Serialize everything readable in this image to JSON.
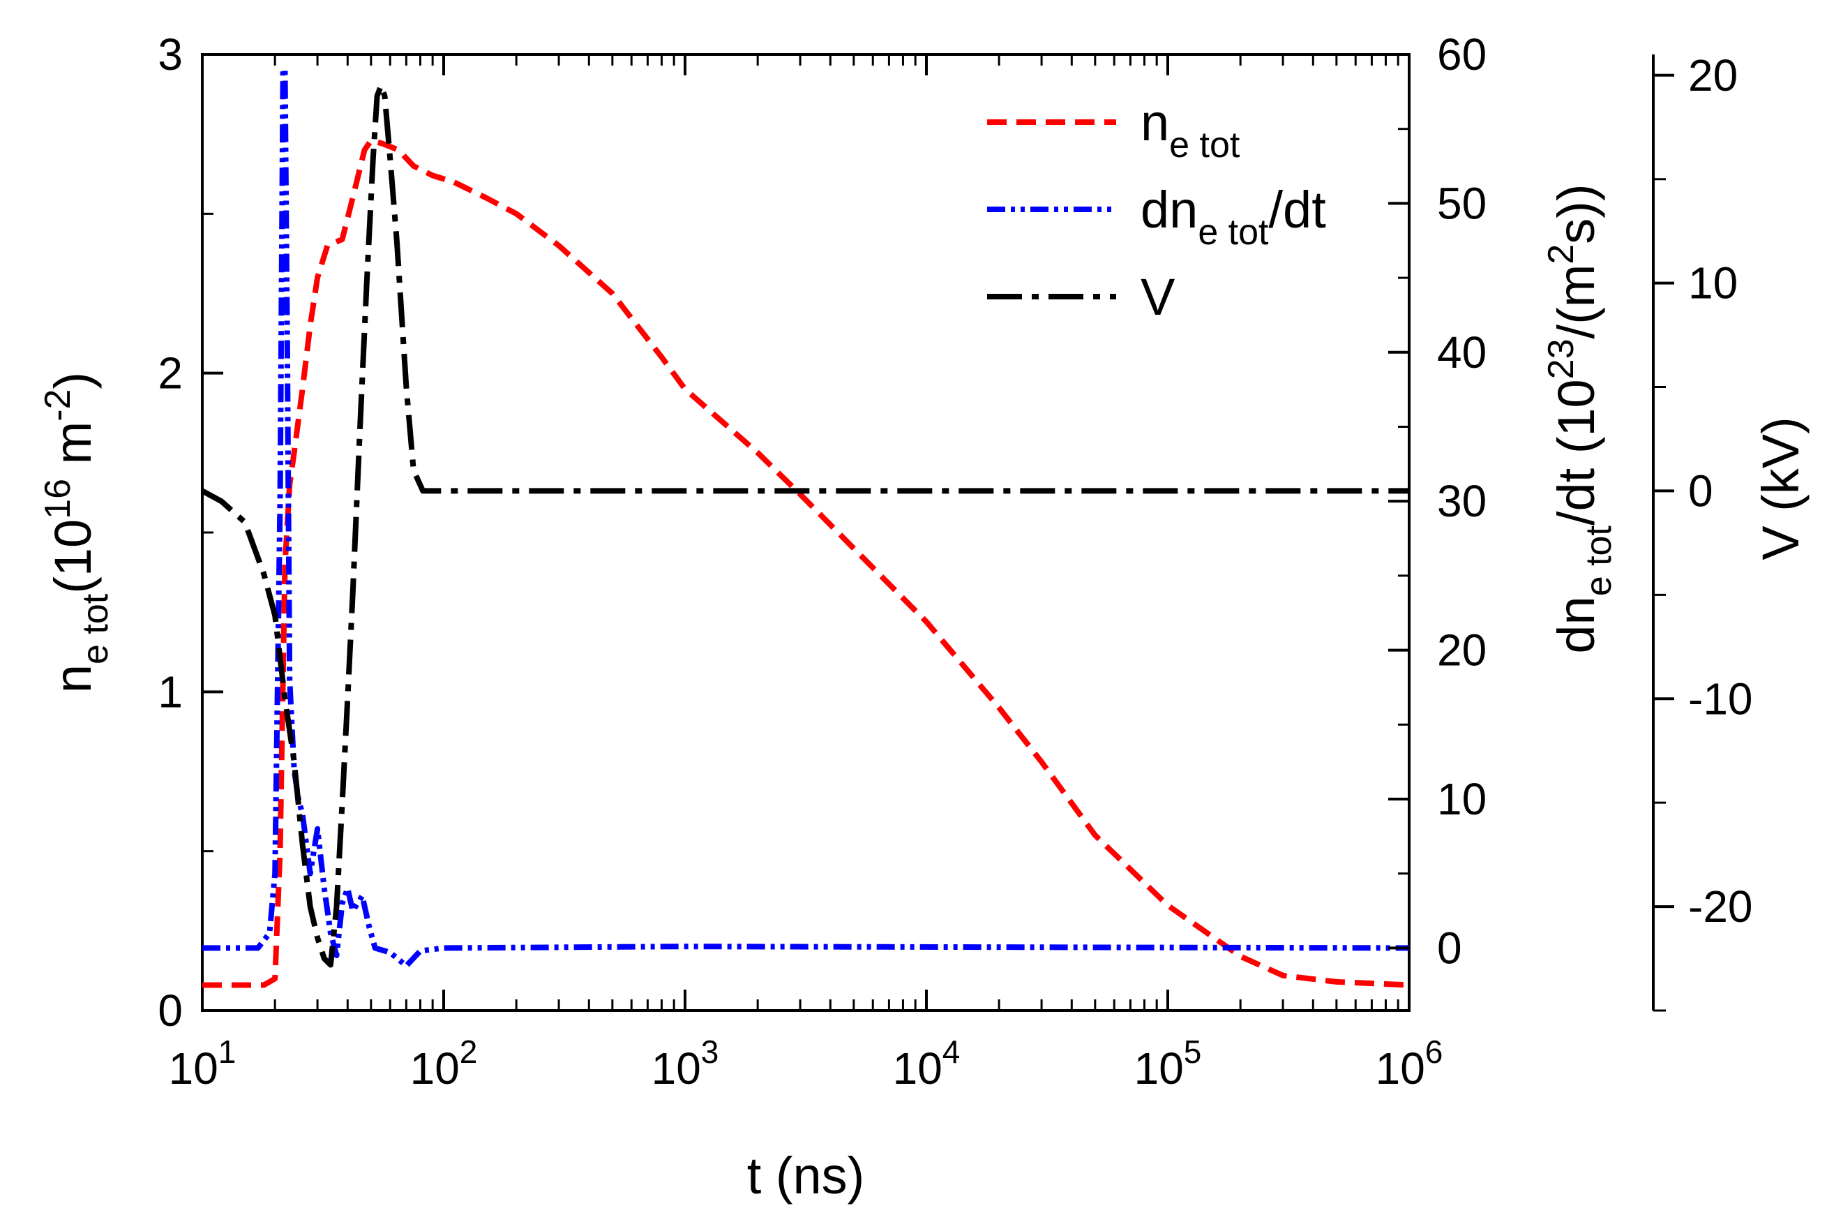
{
  "colors": {
    "ne_tot": "#ff0000",
    "dne_tot_dt": "#0000ff",
    "V": "#000000",
    "axis": "#000000"
  },
  "chart_data": {
    "type": "line",
    "x": {
      "label": "t (ns)",
      "scale": "log",
      "range": [
        10,
        1000000
      ],
      "ticks": [
        {
          "value": 10,
          "base": "10",
          "exp": "1"
        },
        {
          "value": 100,
          "base": "10",
          "exp": "2"
        },
        {
          "value": 1000,
          "base": "10",
          "exp": "3"
        },
        {
          "value": 10000,
          "base": "10",
          "exp": "4"
        },
        {
          "value": 100000,
          "base": "10",
          "exp": "5"
        },
        {
          "value": 1000000,
          "base": "10",
          "exp": "6"
        }
      ]
    },
    "y_left": {
      "label_parts": {
        "n": "n",
        "sub": "e tot",
        "open": "(10",
        "exp": "16",
        "unit": " m",
        "unit_exp": "-2",
        "close": ")"
      },
      "range": [
        0,
        3
      ],
      "ticks": [
        {
          "value": 0,
          "label": "0"
        },
        {
          "value": 1,
          "label": "1"
        },
        {
          "value": 2,
          "label": "2"
        },
        {
          "value": 3,
          "label": "3"
        }
      ]
    },
    "y_right1": {
      "label_parts": {
        "n": "dn",
        "sub": "e tot",
        "mid": "/dt (10",
        "exp": "23",
        "unit": "/(m",
        "unit_exp": "2",
        "close": "s))"
      },
      "range": [
        -4.2,
        60
      ],
      "ticks": [
        {
          "value": 0,
          "label": "0"
        },
        {
          "value": 10,
          "label": "10"
        },
        {
          "value": 20,
          "label": "20"
        },
        {
          "value": 30,
          "label": "30"
        },
        {
          "value": 40,
          "label": "40"
        },
        {
          "value": 50,
          "label": "50"
        },
        {
          "value": 60,
          "label": "60"
        }
      ]
    },
    "y_right2": {
      "label": "V (kV)",
      "range": [
        -25,
        21
      ],
      "ticks": [
        {
          "value": -20,
          "label": "-20"
        },
        {
          "value": -10,
          "label": "-10"
        },
        {
          "value": 0,
          "label": "0"
        },
        {
          "value": 10,
          "label": "10"
        },
        {
          "value": 20,
          "label": "20"
        }
      ]
    },
    "legend": {
      "position": "top-right",
      "entries": [
        {
          "key": "ne_tot",
          "name": "n",
          "sub": "e tot",
          "suffix": ""
        },
        {
          "key": "dne_tot_dt",
          "name": "dn",
          "sub": "e tot",
          "suffix": "/dt"
        },
        {
          "key": "V",
          "name": "V",
          "sub": "",
          "suffix": ""
        }
      ]
    },
    "series": [
      {
        "key": "ne_tot",
        "axis": "y_left",
        "style": "dashed",
        "points": [
          [
            10,
            0.08
          ],
          [
            18,
            0.08
          ],
          [
            20,
            0.1
          ],
          [
            21,
            0.5
          ],
          [
            22,
            1.4
          ],
          [
            23,
            1.65
          ],
          [
            24,
            1.75
          ],
          [
            26,
            1.95
          ],
          [
            28,
            2.15
          ],
          [
            30,
            2.3
          ],
          [
            33,
            2.4
          ],
          [
            38,
            2.42
          ],
          [
            42,
            2.55
          ],
          [
            47,
            2.7
          ],
          [
            50,
            2.73
          ],
          [
            56,
            2.72
          ],
          [
            65,
            2.7
          ],
          [
            75,
            2.65
          ],
          [
            90,
            2.62
          ],
          [
            110,
            2.6
          ],
          [
            150,
            2.55
          ],
          [
            200,
            2.5
          ],
          [
            300,
            2.4
          ],
          [
            500,
            2.25
          ],
          [
            800,
            2.05
          ],
          [
            1000,
            1.95
          ],
          [
            2000,
            1.75
          ],
          [
            3000,
            1.62
          ],
          [
            5000,
            1.45
          ],
          [
            10000,
            1.22
          ],
          [
            20000,
            0.95
          ],
          [
            30000,
            0.78
          ],
          [
            50000,
            0.55
          ],
          [
            100000,
            0.33
          ],
          [
            200000,
            0.17
          ],
          [
            300000,
            0.11
          ],
          [
            500000,
            0.09
          ],
          [
            1000000,
            0.08
          ]
        ]
      },
      {
        "key": "dne_tot_dt",
        "axis": "y_right1",
        "style": "dashdotdot",
        "points": [
          [
            10,
            0
          ],
          [
            17,
            0
          ],
          [
            19,
            1
          ],
          [
            20,
            5
          ],
          [
            21,
            30
          ],
          [
            21.6,
            59
          ],
          [
            22,
            59
          ],
          [
            22.5,
            40
          ],
          [
            23,
            18
          ],
          [
            24,
            12
          ],
          [
            25,
            10
          ],
          [
            26,
            9
          ],
          [
            28,
            5
          ],
          [
            30,
            8
          ],
          [
            32,
            4
          ],
          [
            34,
            1
          ],
          [
            36,
            -0.5
          ],
          [
            38,
            3
          ],
          [
            40,
            4
          ],
          [
            42,
            2.5
          ],
          [
            44,
            3
          ],
          [
            46,
            3.5
          ],
          [
            49,
            1.5
          ],
          [
            52,
            0
          ],
          [
            60,
            -0.3
          ],
          [
            70,
            -1.2
          ],
          [
            80,
            -0.2
          ],
          [
            100,
            0
          ],
          [
            1000,
            0.1
          ],
          [
            1000000,
            0
          ]
        ]
      },
      {
        "key": "V",
        "axis": "y_right2",
        "style": "dashdot",
        "points": [
          [
            10,
            0
          ],
          [
            12,
            -0.5
          ],
          [
            15,
            -1.5
          ],
          [
            18,
            -4
          ],
          [
            20,
            -6
          ],
          [
            22,
            -10
          ],
          [
            24,
            -13
          ],
          [
            26,
            -17
          ],
          [
            28,
            -20
          ],
          [
            30,
            -21.5
          ],
          [
            32,
            -22.5
          ],
          [
            34,
            -22.8
          ],
          [
            36,
            -20
          ],
          [
            38,
            -15
          ],
          [
            40,
            -10
          ],
          [
            42,
            -5
          ],
          [
            45,
            3
          ],
          [
            48,
            10
          ],
          [
            51,
            16
          ],
          [
            53,
            19
          ],
          [
            55,
            19.5
          ],
          [
            57,
            19
          ],
          [
            60,
            16
          ],
          [
            64,
            12
          ],
          [
            70,
            5
          ],
          [
            75,
            1
          ],
          [
            82,
            0
          ],
          [
            100,
            0
          ],
          [
            1000000,
            0
          ]
        ]
      }
    ]
  }
}
